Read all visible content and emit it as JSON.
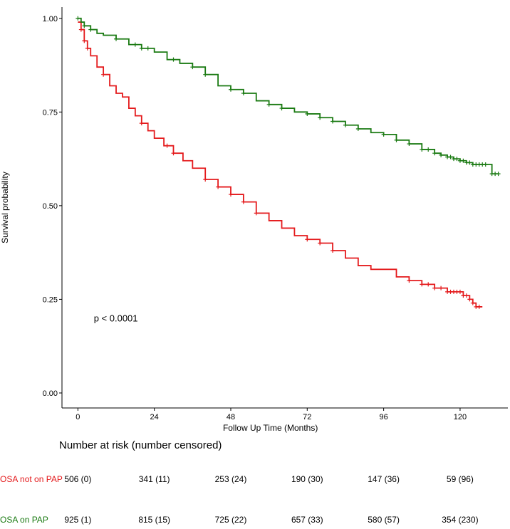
{
  "chart_data": {
    "type": "line",
    "title": "",
    "xlabel": "Follow Up Time (Months)",
    "ylabel": "Survival probability",
    "xlim": [
      -5,
      135
    ],
    "ylim": [
      -0.04,
      1.03
    ],
    "x_ticks": [
      0,
      24,
      48,
      72,
      96,
      120
    ],
    "x_tick_labels": [
      "0",
      "24",
      "48",
      "72",
      "96",
      "120"
    ],
    "y_ticks": [
      0.0,
      0.25,
      0.5,
      0.75,
      1.0
    ],
    "y_tick_labels": [
      "0.00",
      "0.25",
      "0.50",
      "0.75",
      "1.00"
    ],
    "annotation": "p < 0.0001",
    "series": [
      {
        "name": "OSA not on PAP",
        "color": "#e41a1c",
        "x": [
          0,
          1,
          2,
          3,
          4,
          6,
          8,
          10,
          12,
          14,
          16,
          18,
          20,
          22,
          24,
          27,
          30,
          33,
          36,
          40,
          44,
          48,
          52,
          56,
          60,
          64,
          68,
          72,
          76,
          80,
          84,
          88,
          92,
          96,
          100,
          104,
          108,
          112,
          116,
          118,
          120,
          121,
          122,
          123,
          124,
          125,
          126,
          127
        ],
        "y": [
          0.99,
          0.97,
          0.94,
          0.92,
          0.9,
          0.87,
          0.85,
          0.82,
          0.8,
          0.79,
          0.76,
          0.74,
          0.72,
          0.7,
          0.68,
          0.66,
          0.64,
          0.62,
          0.6,
          0.57,
          0.55,
          0.53,
          0.51,
          0.48,
          0.46,
          0.44,
          0.42,
          0.41,
          0.4,
          0.38,
          0.36,
          0.34,
          0.33,
          0.33,
          0.31,
          0.3,
          0.29,
          0.28,
          0.27,
          0.27,
          0.27,
          0.26,
          0.26,
          0.25,
          0.24,
          0.23,
          0.23,
          0.23
        ]
      },
      {
        "name": "OSA on PAP",
        "color": "#1a7a12",
        "x": [
          0,
          1,
          2,
          4,
          6,
          8,
          12,
          16,
          20,
          24,
          28,
          32,
          36,
          40,
          44,
          48,
          52,
          56,
          60,
          64,
          68,
          72,
          76,
          80,
          84,
          88,
          92,
          96,
          100,
          104,
          108,
          112,
          114,
          116,
          118,
          120,
          122,
          124,
          126,
          128,
          129,
          130,
          131,
          132
        ],
        "y": [
          1.0,
          0.99,
          0.98,
          0.97,
          0.96,
          0.955,
          0.945,
          0.93,
          0.92,
          0.91,
          0.89,
          0.88,
          0.87,
          0.85,
          0.82,
          0.81,
          0.8,
          0.78,
          0.77,
          0.76,
          0.75,
          0.745,
          0.735,
          0.725,
          0.715,
          0.705,
          0.695,
          0.69,
          0.675,
          0.665,
          0.65,
          0.64,
          0.635,
          0.63,
          0.625,
          0.62,
          0.615,
          0.61,
          0.61,
          0.61,
          0.61,
          0.585,
          0.585,
          0.585
        ]
      }
    ],
    "censor_marks": [
      {
        "series": "OSA not on PAP",
        "x": [
          1,
          2,
          3,
          8,
          20,
          28,
          30,
          40,
          44,
          48,
          52,
          56,
          72,
          76,
          80,
          104,
          108,
          110,
          112,
          114,
          116,
          117,
          118,
          119,
          120,
          121,
          122,
          123,
          124,
          125,
          126
        ]
      },
      {
        "series": "OSA on PAP",
        "x": [
          0,
          2,
          4,
          12,
          18,
          20,
          22,
          30,
          36,
          40,
          48,
          52,
          60,
          64,
          72,
          76,
          80,
          84,
          88,
          96,
          100,
          104,
          108,
          110,
          112,
          114,
          116,
          117,
          118,
          119,
          120,
          121,
          122,
          123,
          124,
          125,
          126,
          127,
          128,
          130,
          131,
          132
        ]
      }
    ]
  },
  "risk_table": {
    "title": "Number at risk (number censored)",
    "times": [
      0,
      24,
      48,
      72,
      96,
      120
    ],
    "rows": [
      {
        "label": "OSA not on PAP",
        "color": "#e41a1c",
        "cells": [
          "506 (0)",
          "341 (11)",
          "253 (24)",
          "190 (30)",
          "147 (36)",
          "59 (96)"
        ]
      },
      {
        "label": "OSA on PAP",
        "color": "#1a7a12",
        "cells": [
          "925 (1)",
          "815 (15)",
          "725 (22)",
          "657 (33)",
          "580 (57)",
          "354 (230)"
        ]
      }
    ]
  }
}
